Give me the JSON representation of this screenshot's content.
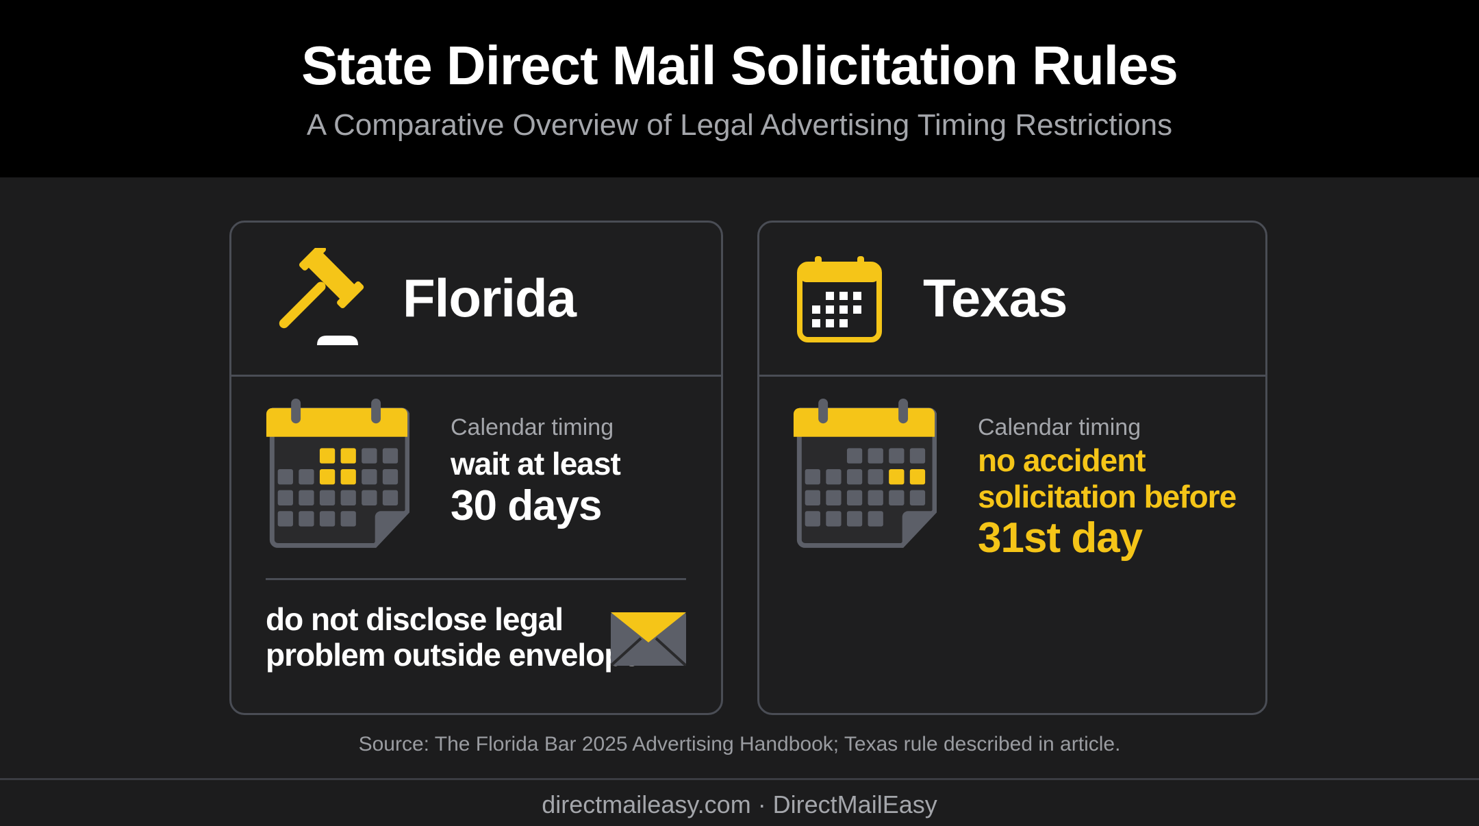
{
  "header": {
    "title": "State Direct Mail Solicitation Rules",
    "subtitle": "A Comparative Overview of Legal Advertising Timing Restrictions"
  },
  "cards": [
    {
      "state": "Florida",
      "timing_label": "Calendar timing",
      "timing_lines": [
        "wait at least",
        "30 days"
      ],
      "note_lines": [
        "do not disclose legal",
        "problem outside envelope"
      ]
    },
    {
      "state": "Texas",
      "timing_label": "Calendar timing",
      "timing_lines": [
        "no accident",
        "solicitation before",
        "31st day"
      ]
    }
  ],
  "source": "Source: The Florida Bar 2025 Advertising Handbook; Texas rule described in article.",
  "footer": "directmaileasy.com · DirectMailEasy"
}
